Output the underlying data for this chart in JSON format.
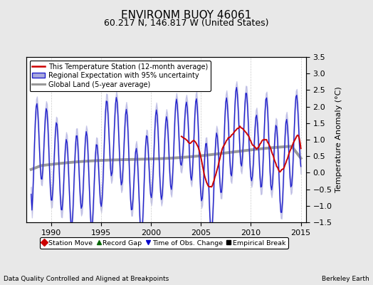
{
  "title": "ENVIRONM BUOY 46061",
  "subtitle": "60.217 N, 146.817 W (United States)",
  "ylabel": "Temperature Anomaly (°C)",
  "xlabel_note": "Data Quality Controlled and Aligned at Breakpoints",
  "credit": "Berkeley Earth",
  "xlim": [
    1987.5,
    2015.5
  ],
  "ylim": [
    -1.5,
    3.5
  ],
  "yticks": [
    -1.5,
    -1.0,
    -0.5,
    0,
    0.5,
    1.0,
    1.5,
    2.0,
    2.5,
    3.0,
    3.5
  ],
  "xticks": [
    1990,
    1995,
    2000,
    2005,
    2010,
    2015
  ],
  "background_color": "#e8e8e8",
  "plot_bg_color": "#ffffff",
  "red_line_color": "#cc0000",
  "blue_line_color": "#2222cc",
  "blue_fill_color": "#aaaadd",
  "gray_line_color": "#999999",
  "legend_items": [
    "This Temperature Station (12-month average)",
    "Regional Expectation with 95% uncertainty",
    "Global Land (5-year average)"
  ],
  "bottom_legend_items": [
    [
      "Station Move",
      "#cc0000",
      "D"
    ],
    [
      "Record Gap",
      "#006600",
      "^"
    ],
    [
      "Time of Obs. Change",
      "#0000cc",
      "v"
    ],
    [
      "Empirical Break",
      "#000000",
      "s"
    ]
  ],
  "title_fontsize": 11,
  "tick_fontsize": 8,
  "ylabel_fontsize": 8
}
